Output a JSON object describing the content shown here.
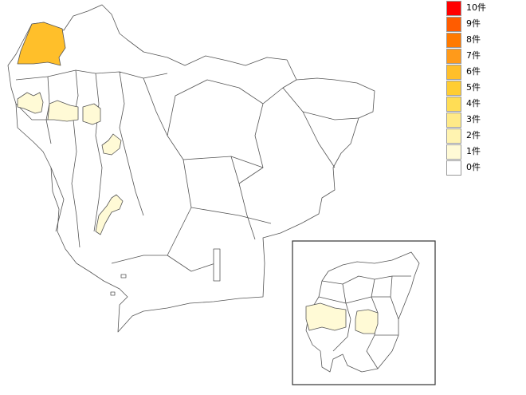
{
  "legend": {
    "items": [
      {
        "label": "10件",
        "color": "#ff0000"
      },
      {
        "label": "9件",
        "color": "#ff5c00"
      },
      {
        "label": "8件",
        "color": "#ff7a00"
      },
      {
        "label": "7件",
        "color": "#ff9a1a"
      },
      {
        "label": "6件",
        "color": "#ffbf2a"
      },
      {
        "label": "5件",
        "color": "#ffcd33"
      },
      {
        "label": "4件",
        "color": "#ffdd55"
      },
      {
        "label": "3件",
        "color": "#ffea88"
      },
      {
        "label": "2件",
        "color": "#fff3b0"
      },
      {
        "label": "1件",
        "color": "#fffad6"
      },
      {
        "label": "0件",
        "color": "#ffffff"
      }
    ]
  },
  "map": {
    "regions": [
      {
        "id": "northwest-city",
        "count": 6
      },
      {
        "id": "west-town-a",
        "count": 1
      },
      {
        "id": "west-town-b",
        "count": 1
      },
      {
        "id": "west-town-c",
        "count": 1
      },
      {
        "id": "central-town-a",
        "count": 1
      },
      {
        "id": "central-town-b",
        "count": 1
      },
      {
        "id": "inset-ward-west",
        "count": 1
      },
      {
        "id": "inset-ward-east",
        "count": 1
      }
    ]
  }
}
